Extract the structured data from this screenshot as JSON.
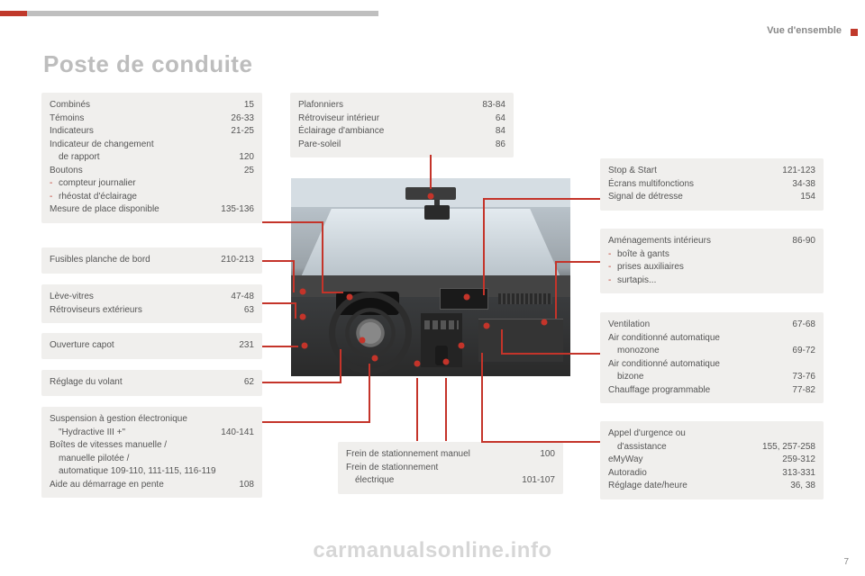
{
  "header": {
    "section": "Vue d'ensemble"
  },
  "title": "Poste de conduite",
  "watermark": "carmanualsonline.info",
  "page_number": "7",
  "colors": {
    "accent": "#c0392b",
    "box_bg": "#f0efed",
    "text": "#555555",
    "title": "#bdbdbd"
  },
  "boxes": {
    "top_center": {
      "items": [
        {
          "label": "Plafonniers",
          "pages": "83-84"
        },
        {
          "label": "Rétroviseur intérieur",
          "pages": "64"
        },
        {
          "label": "Éclairage d'ambiance",
          "pages": "84"
        },
        {
          "label": "Pare-soleil",
          "pages": "86"
        }
      ]
    },
    "left1": {
      "items": [
        {
          "label": "Combinés",
          "pages": "15"
        },
        {
          "label": "Témoins",
          "pages": "26-33"
        },
        {
          "label": "Indicateurs",
          "pages": "21-25"
        },
        {
          "label": "Indicateur de changement",
          "pages": ""
        },
        {
          "label": "de rapport",
          "pages": "120",
          "indent": true
        },
        {
          "label": "Boutons",
          "pages": "25"
        },
        {
          "label": "compteur journalier",
          "pages": "",
          "sub": true
        },
        {
          "label": "rhéostat d'éclairage",
          "pages": "",
          "sub": true
        },
        {
          "label": "Mesure de place disponible",
          "pages": "135-136"
        }
      ]
    },
    "left2": {
      "items": [
        {
          "label": "Fusibles planche de bord",
          "pages": "210-213"
        }
      ]
    },
    "left3": {
      "items": [
        {
          "label": "Lève-vitres",
          "pages": "47-48"
        },
        {
          "label": "Rétroviseurs extérieurs",
          "pages": "63"
        }
      ]
    },
    "left4": {
      "items": [
        {
          "label": "Ouverture capot",
          "pages": "231"
        }
      ]
    },
    "left5": {
      "items": [
        {
          "label": "Réglage du volant",
          "pages": "62"
        }
      ]
    },
    "left6": {
      "items": [
        {
          "label": "Suspension à gestion électronique",
          "pages": ""
        },
        {
          "label": "\"Hydractive III +\"",
          "pages": "140-141",
          "indent": true
        },
        {
          "label": "Boîtes de vitesses manuelle /",
          "pages": ""
        },
        {
          "label": "manuelle pilotée /",
          "pages": "",
          "indent": true
        },
        {
          "label": "automatique  109-110, 111-115, 116-119",
          "pages": "",
          "indent": true
        },
        {
          "label": "Aide au démarrage en pente",
          "pages": "108"
        }
      ]
    },
    "bottom_center": {
      "items": [
        {
          "label": "Frein de stationnement manuel",
          "pages": "100"
        },
        {
          "label": "Frein de stationnement",
          "pages": ""
        },
        {
          "label": "électrique",
          "pages": "101-107",
          "indent": true
        }
      ]
    },
    "right1": {
      "items": [
        {
          "label": "Stop & Start",
          "pages": "121-123"
        },
        {
          "label": "Écrans multifonctions",
          "pages": "34-38"
        },
        {
          "label": "Signal de détresse",
          "pages": "154"
        }
      ]
    },
    "right2": {
      "items": [
        {
          "label": "Aménagements intérieurs",
          "pages": "86-90"
        },
        {
          "label": "boîte à gants",
          "pages": "",
          "sub": true
        },
        {
          "label": "prises auxiliaires",
          "pages": "",
          "sub": true
        },
        {
          "label": "surtapis...",
          "pages": "",
          "sub": true
        }
      ]
    },
    "right3": {
      "items": [
        {
          "label": "Ventilation",
          "pages": "67-68"
        },
        {
          "label": "Air conditionné automatique",
          "pages": ""
        },
        {
          "label": "monozone",
          "pages": "69-72",
          "indent": true
        },
        {
          "label": "Air conditionné automatique",
          "pages": ""
        },
        {
          "label": "bizone",
          "pages": "73-76",
          "indent": true
        },
        {
          "label": "Chauffage programmable",
          "pages": "77-82"
        }
      ]
    },
    "right4": {
      "items": [
        {
          "label": "Appel d'urgence ou",
          "pages": ""
        },
        {
          "label": "d'assistance",
          "pages": "155, 257-258",
          "indent": true
        },
        {
          "label": "eMyWay",
          "pages": "259-312"
        },
        {
          "label": "Autoradio",
          "pages": "313-331"
        },
        {
          "label": "Réglage date/heure",
          "pages": "36, 38"
        }
      ]
    }
  }
}
